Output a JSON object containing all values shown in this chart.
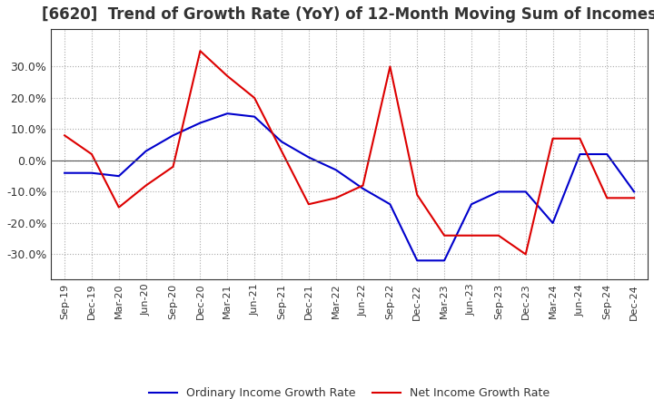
{
  "title": "[6620]  Trend of Growth Rate (YoY) of 12-Month Moving Sum of Incomes",
  "title_fontsize": 12,
  "ylim": [
    -0.38,
    0.42
  ],
  "yticks": [
    -0.3,
    -0.2,
    -0.1,
    0.0,
    0.1,
    0.2,
    0.3
  ],
  "background_color": "#ffffff",
  "plot_bg_color": "#ffffff",
  "grid_color": "#aaaaaa",
  "ordinary_color": "#0000cc",
  "net_color": "#dd0000",
  "legend_ordinary": "Ordinary Income Growth Rate",
  "legend_net": "Net Income Growth Rate",
  "x_labels": [
    "Sep-19",
    "Dec-19",
    "Mar-20",
    "Jun-20",
    "Sep-20",
    "Dec-20",
    "Mar-21",
    "Jun-21",
    "Sep-21",
    "Dec-21",
    "Mar-22",
    "Jun-22",
    "Sep-22",
    "Dec-22",
    "Mar-23",
    "Jun-23",
    "Sep-23",
    "Dec-23",
    "Mar-24",
    "Jun-24",
    "Sep-24",
    "Dec-24"
  ],
  "ordinary": [
    -0.04,
    -0.04,
    -0.05,
    0.03,
    0.08,
    0.12,
    0.15,
    0.14,
    0.06,
    0.01,
    -0.03,
    -0.09,
    -0.14,
    -0.32,
    -0.32,
    -0.14,
    -0.1,
    -0.1,
    -0.2,
    0.02,
    0.02,
    -0.1
  ],
  "net": [
    0.08,
    0.02,
    -0.15,
    -0.08,
    -0.02,
    0.35,
    0.27,
    0.2,
    0.03,
    -0.14,
    -0.12,
    -0.08,
    0.3,
    -0.11,
    -0.24,
    -0.24,
    -0.24,
    -0.3,
    0.07,
    0.07,
    -0.12,
    -0.12
  ]
}
